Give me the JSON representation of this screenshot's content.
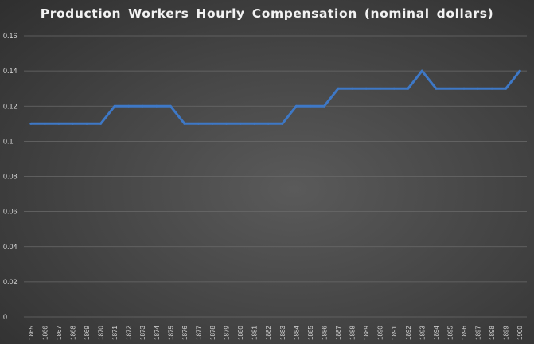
{
  "chart_data": {
    "type": "line",
    "title": "Production Workers Hourly Compensation (nominal dollars)",
    "xlabel": "",
    "ylabel": "",
    "ylim": [
      0,
      0.16
    ],
    "yticks": [
      "0",
      "0.02",
      "0.04",
      "0.06",
      "0.08",
      "0.1",
      "0.12",
      "0.14",
      "0.16"
    ],
    "categories": [
      "1865",
      "1866",
      "1867",
      "1868",
      "1869",
      "1870",
      "1871",
      "1872",
      "1873",
      "1874",
      "1875",
      "1876",
      "1877",
      "1878",
      "1879",
      "1880",
      "1881",
      "1882",
      "1883",
      "1884",
      "1885",
      "1886",
      "1887",
      "1888",
      "1889",
      "1890",
      "1891",
      "1892",
      "1893",
      "1894",
      "1895",
      "1896",
      "1897",
      "1898",
      "1899",
      "1900"
    ],
    "series": [
      {
        "values": [
          0.11,
          0.11,
          0.11,
          0.11,
          0.11,
          0.11,
          0.12,
          0.12,
          0.12,
          0.12,
          0.12,
          0.11,
          0.11,
          0.11,
          0.11,
          0.11,
          0.11,
          0.11,
          0.11,
          0.12,
          0.12,
          0.12,
          0.13,
          0.13,
          0.13,
          0.13,
          0.13,
          0.13,
          0.14,
          0.13,
          0.13,
          0.13,
          0.13,
          0.13,
          0.13,
          0.14
        ],
        "color": "#3e78c6"
      }
    ],
    "grid": true,
    "legend": "none"
  }
}
